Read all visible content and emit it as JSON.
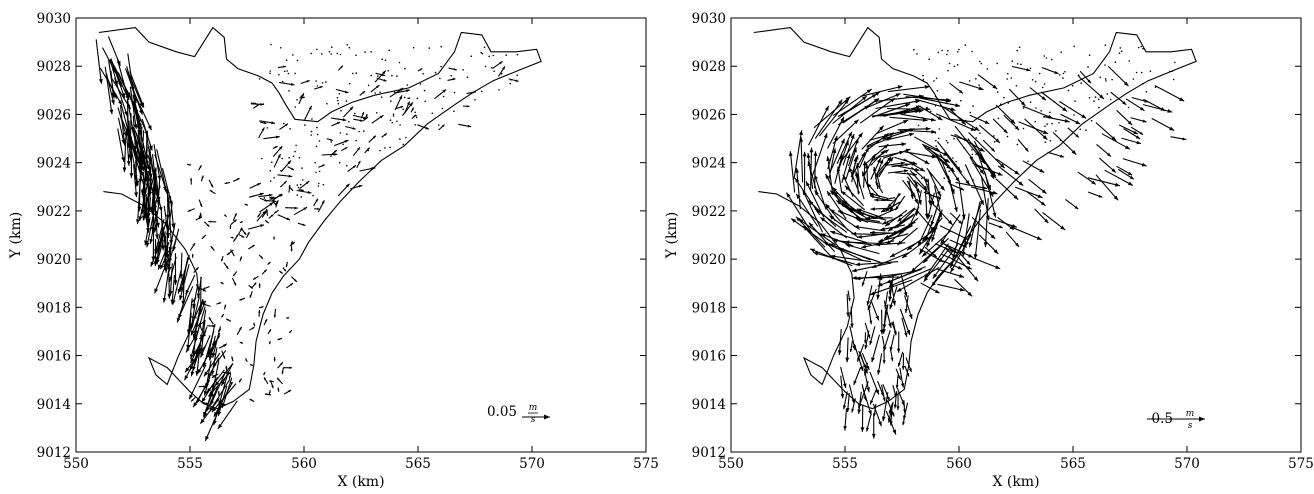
{
  "chart_data": [
    {
      "type": "quiver",
      "xlabel": "X (km)",
      "ylabel": "Y (km)",
      "xlim": [
        550,
        575
      ],
      "ylim": [
        9012,
        9030
      ],
      "xticks": [
        550,
        555,
        560,
        565,
        570,
        575
      ],
      "yticks": [
        9012,
        9014,
        9016,
        9018,
        9020,
        9022,
        9024,
        9026,
        9028,
        9030
      ],
      "reference_arrow": {
        "magnitude": "0.05",
        "unit": "m/s",
        "unit_num": "m",
        "unit_den": "s"
      },
      "grid": false,
      "flow_pattern": "strong southward jet along western channel, weak flow in eastern arm"
    },
    {
      "type": "quiver",
      "xlabel": "X (km)",
      "ylabel": "Y (km)",
      "xlim": [
        550,
        575
      ],
      "ylim": [
        9012,
        9030
      ],
      "xticks": [
        550,
        555,
        560,
        565,
        570,
        575
      ],
      "yticks": [
        9012,
        9014,
        9016,
        9018,
        9020,
        9022,
        9024,
        9026,
        9028,
        9030
      ],
      "reference_arrow": {
        "magnitude": "0.5",
        "unit": "m/s",
        "unit_num": "m",
        "unit_den": "s"
      },
      "grid": false,
      "flow_pattern": "clockwise gyre centered near (557, 9023), outflow toward south-east"
    }
  ]
}
